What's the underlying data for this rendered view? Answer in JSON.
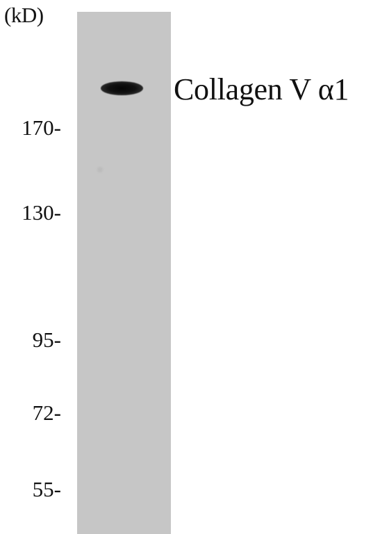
{
  "blot": {
    "unit_label": "(kD)",
    "band_label": "Collagen V α1",
    "markers": [
      "170-",
      "130-",
      "95-",
      "72-",
      "55-"
    ]
  }
}
